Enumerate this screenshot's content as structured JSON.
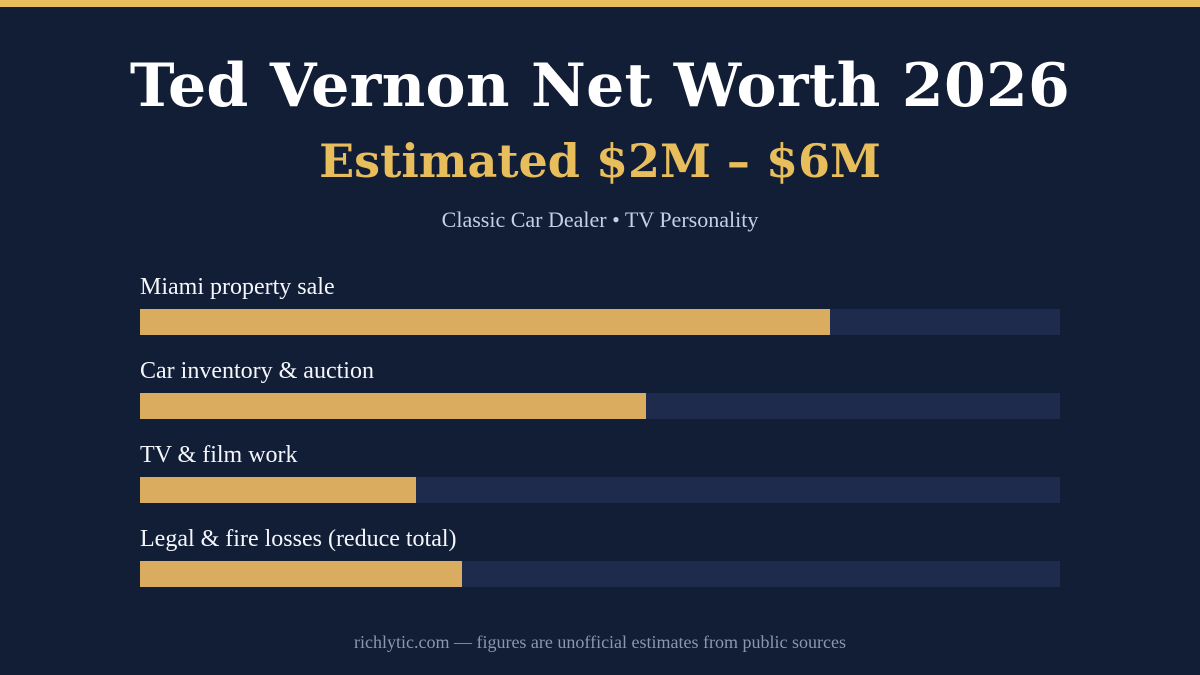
{
  "header": {
    "title": "Ted Vernon Net Worth 2026",
    "estimate": "Estimated $2M – $6M",
    "tagline": "Classic Car Dealer • TV Personality"
  },
  "footer": {
    "text": "richlytic.com — figures are unofficial estimates from public sources"
  },
  "colors": {
    "background": "#121d36",
    "accent": "#e8bd5c",
    "bar_fill": "#d9ac5f",
    "bar_track": "#1e2b4d"
  },
  "chart_data": {
    "type": "bar",
    "orientation": "horizontal",
    "categories": [
      "Miami property sale",
      "Car inventory & auction",
      "TV & film work",
      "Legal & fire losses (reduce total)"
    ],
    "values": [
      0.75,
      0.55,
      0.3,
      0.35
    ],
    "value_scale": "fraction of full bar",
    "xlim": [
      0,
      1
    ],
    "grid": false,
    "legend": "none"
  }
}
